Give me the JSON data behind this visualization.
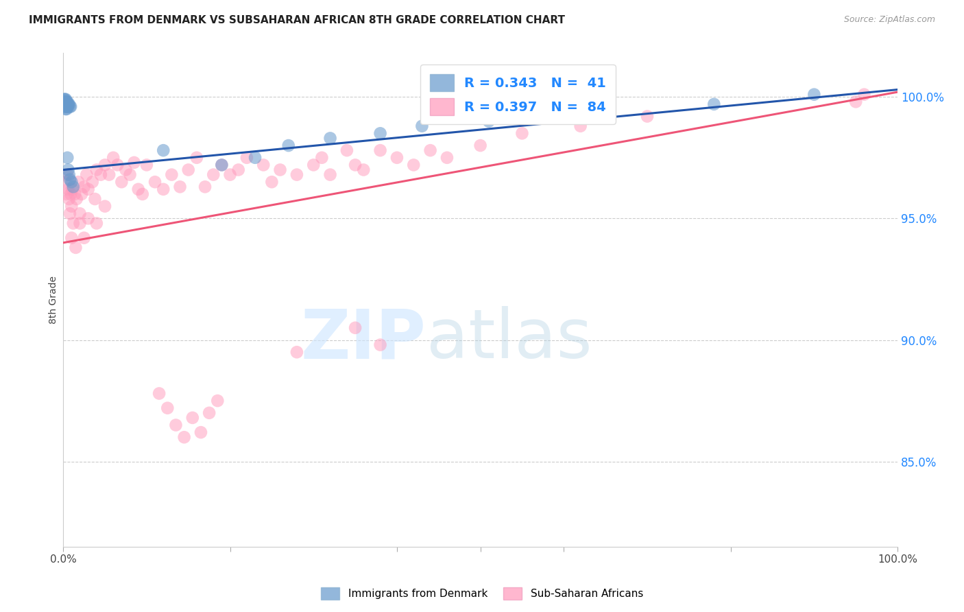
{
  "title": "IMMIGRANTS FROM DENMARK VS SUBSAHARAN AFRICAN 8TH GRADE CORRELATION CHART",
  "source": "Source: ZipAtlas.com",
  "ylabel": "8th Grade",
  "ytick_labels": [
    "85.0%",
    "90.0%",
    "95.0%",
    "100.0%"
  ],
  "ytick_values": [
    0.85,
    0.9,
    0.95,
    1.0
  ],
  "xlim": [
    0.0,
    1.0
  ],
  "ylim": [
    0.815,
    1.018
  ],
  "legend_blue_r": "R = 0.343",
  "legend_blue_n": "N =  41",
  "legend_pink_r": "R = 0.397",
  "legend_pink_n": "N =  84",
  "blue_color": "#6699CC",
  "pink_color": "#FF99BB",
  "blue_line_color": "#2255AA",
  "pink_line_color": "#EE5577",
  "legend_text_color": "#2288FF",
  "blue_line_x": [
    0.0,
    1.0
  ],
  "blue_line_y": [
    0.97,
    1.003
  ],
  "pink_line_x": [
    0.0,
    1.0
  ],
  "pink_line_y": [
    0.94,
    1.002
  ],
  "blue_scatter_x": [
    0.001,
    0.001,
    0.001,
    0.002,
    0.002,
    0.002,
    0.002,
    0.003,
    0.003,
    0.003,
    0.003,
    0.003,
    0.004,
    0.004,
    0.004,
    0.004,
    0.005,
    0.005,
    0.005,
    0.005,
    0.006,
    0.006,
    0.006,
    0.007,
    0.007,
    0.008,
    0.008,
    0.009,
    0.01,
    0.012,
    0.12,
    0.19,
    0.23,
    0.27,
    0.32,
    0.38,
    0.43,
    0.51,
    0.62,
    0.78,
    0.9
  ],
  "blue_scatter_y": [
    0.999,
    0.998,
    0.997,
    0.999,
    0.998,
    0.997,
    0.996,
    0.999,
    0.998,
    0.997,
    0.996,
    0.995,
    0.998,
    0.997,
    0.996,
    0.995,
    0.998,
    0.997,
    0.996,
    0.975,
    0.997,
    0.996,
    0.97,
    0.997,
    0.968,
    0.996,
    0.966,
    0.996,
    0.965,
    0.963,
    0.978,
    0.972,
    0.975,
    0.98,
    0.983,
    0.985,
    0.988,
    0.99,
    0.993,
    0.997,
    1.001
  ],
  "pink_scatter_x": [
    0.003,
    0.004,
    0.005,
    0.006,
    0.007,
    0.008,
    0.009,
    0.01,
    0.011,
    0.012,
    0.014,
    0.016,
    0.018,
    0.02,
    0.022,
    0.025,
    0.028,
    0.03,
    0.035,
    0.038,
    0.04,
    0.045,
    0.05,
    0.055,
    0.06,
    0.065,
    0.07,
    0.075,
    0.08,
    0.085,
    0.09,
    0.095,
    0.1,
    0.11,
    0.12,
    0.13,
    0.14,
    0.15,
    0.16,
    0.17,
    0.18,
    0.19,
    0.2,
    0.21,
    0.22,
    0.24,
    0.25,
    0.26,
    0.28,
    0.3,
    0.31,
    0.32,
    0.34,
    0.35,
    0.36,
    0.38,
    0.4,
    0.42,
    0.44,
    0.46,
    0.01,
    0.015,
    0.02,
    0.025,
    0.03,
    0.04,
    0.05,
    0.5,
    0.55,
    0.62,
    0.7,
    0.115,
    0.125,
    0.135,
    0.145,
    0.155,
    0.165,
    0.175,
    0.185,
    0.28,
    0.35,
    0.38,
    0.95,
    0.96
  ],
  "pink_scatter_y": [
    0.965,
    0.96,
    0.968,
    0.962,
    0.958,
    0.952,
    0.96,
    0.955,
    0.962,
    0.948,
    0.96,
    0.958,
    0.965,
    0.952,
    0.96,
    0.963,
    0.968,
    0.962,
    0.965,
    0.958,
    0.97,
    0.968,
    0.972,
    0.968,
    0.975,
    0.972,
    0.965,
    0.97,
    0.968,
    0.973,
    0.962,
    0.96,
    0.972,
    0.965,
    0.962,
    0.968,
    0.963,
    0.97,
    0.975,
    0.963,
    0.968,
    0.972,
    0.968,
    0.97,
    0.975,
    0.972,
    0.965,
    0.97,
    0.968,
    0.972,
    0.975,
    0.968,
    0.978,
    0.972,
    0.97,
    0.978,
    0.975,
    0.972,
    0.978,
    0.975,
    0.942,
    0.938,
    0.948,
    0.942,
    0.95,
    0.948,
    0.955,
    0.98,
    0.985,
    0.988,
    0.992,
    0.878,
    0.872,
    0.865,
    0.86,
    0.868,
    0.862,
    0.87,
    0.875,
    0.895,
    0.905,
    0.898,
    0.998,
    1.001
  ]
}
